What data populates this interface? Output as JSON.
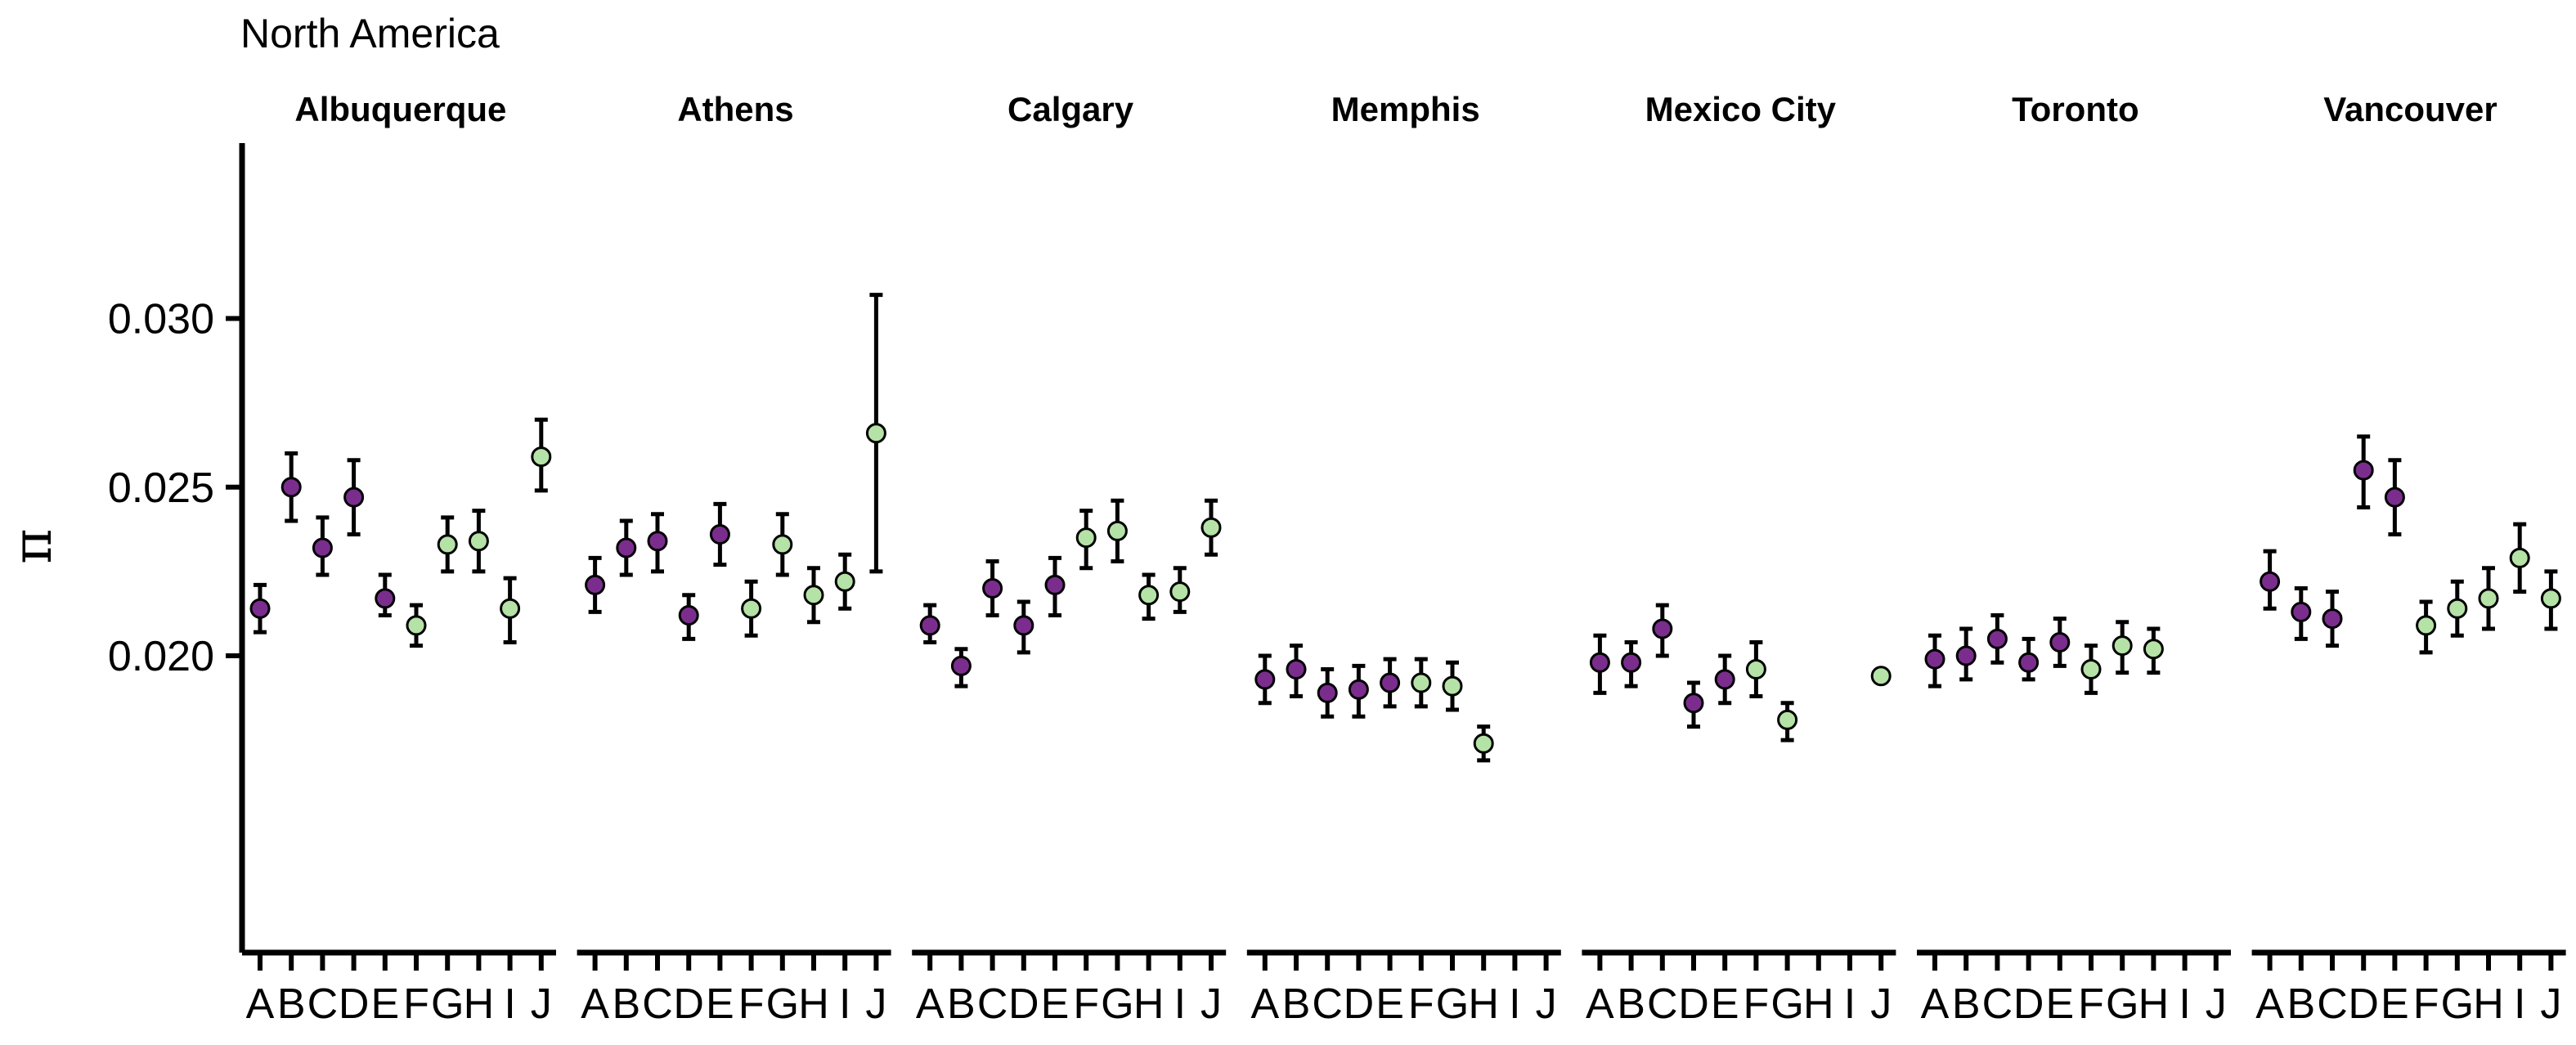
{
  "colors": {
    "purple": "#7b2d8e",
    "light_green": "#b5e2a7",
    "stroke": "#000000"
  },
  "chart_data": {
    "type": "scatter",
    "subtitle": "North America",
    "ylabel": "π",
    "ylim": [
      0.0112,
      0.0352
    ],
    "yticks": [
      0.02,
      0.025,
      0.03
    ],
    "ytick_labels": [
      "0.020",
      "0.025",
      "0.030"
    ],
    "categories": [
      "A",
      "B",
      "C",
      "D",
      "E",
      "F",
      "G",
      "H",
      "I",
      "J"
    ],
    "grid": false,
    "error_bars": true,
    "panels": [
      {
        "name": "Albuquerque",
        "points": [
          {
            "x": "A",
            "y": 0.0214,
            "lo": 0.0207,
            "hi": 0.0221,
            "color": "purple"
          },
          {
            "x": "B",
            "y": 0.025,
            "lo": 0.024,
            "hi": 0.026,
            "color": "purple"
          },
          {
            "x": "C",
            "y": 0.0232,
            "lo": 0.0224,
            "hi": 0.0241,
            "color": "purple"
          },
          {
            "x": "D",
            "y": 0.0247,
            "lo": 0.0236,
            "hi": 0.0258,
            "color": "purple"
          },
          {
            "x": "E",
            "y": 0.0217,
            "lo": 0.0212,
            "hi": 0.0224,
            "color": "purple"
          },
          {
            "x": "F",
            "y": 0.0209,
            "lo": 0.0203,
            "hi": 0.0215,
            "color": "light_green"
          },
          {
            "x": "G",
            "y": 0.0233,
            "lo": 0.0225,
            "hi": 0.0241,
            "color": "light_green"
          },
          {
            "x": "H",
            "y": 0.0234,
            "lo": 0.0225,
            "hi": 0.0243,
            "color": "light_green"
          },
          {
            "x": "I",
            "y": 0.0214,
            "lo": 0.0204,
            "hi": 0.0223,
            "color": "light_green"
          },
          {
            "x": "J",
            "y": 0.0259,
            "lo": 0.0249,
            "hi": 0.027,
            "color": "light_green"
          }
        ]
      },
      {
        "name": "Athens",
        "points": [
          {
            "x": "A",
            "y": 0.0221,
            "lo": 0.0213,
            "hi": 0.0229,
            "color": "purple"
          },
          {
            "x": "B",
            "y": 0.0232,
            "lo": 0.0224,
            "hi": 0.024,
            "color": "purple"
          },
          {
            "x": "C",
            "y": 0.0234,
            "lo": 0.0225,
            "hi": 0.0242,
            "color": "purple"
          },
          {
            "x": "D",
            "y": 0.0212,
            "lo": 0.0205,
            "hi": 0.0218,
            "color": "purple"
          },
          {
            "x": "E",
            "y": 0.0236,
            "lo": 0.0227,
            "hi": 0.0245,
            "color": "purple"
          },
          {
            "x": "F",
            "y": 0.0214,
            "lo": 0.0206,
            "hi": 0.0222,
            "color": "light_green"
          },
          {
            "x": "G",
            "y": 0.0233,
            "lo": 0.0224,
            "hi": 0.0242,
            "color": "light_green"
          },
          {
            "x": "H",
            "y": 0.0218,
            "lo": 0.021,
            "hi": 0.0226,
            "color": "light_green"
          },
          {
            "x": "I",
            "y": 0.0222,
            "lo": 0.0214,
            "hi": 0.023,
            "color": "light_green"
          },
          {
            "x": "J",
            "y": 0.0266,
            "lo": 0.0225,
            "hi": 0.0307,
            "color": "light_green"
          }
        ]
      },
      {
        "name": "Calgary",
        "points": [
          {
            "x": "A",
            "y": 0.0209,
            "lo": 0.0204,
            "hi": 0.0215,
            "color": "purple"
          },
          {
            "x": "B",
            "y": 0.0197,
            "lo": 0.0191,
            "hi": 0.0202,
            "color": "purple"
          },
          {
            "x": "C",
            "y": 0.022,
            "lo": 0.0212,
            "hi": 0.0228,
            "color": "purple"
          },
          {
            "x": "D",
            "y": 0.0209,
            "lo": 0.0201,
            "hi": 0.0216,
            "color": "purple"
          },
          {
            "x": "E",
            "y": 0.0221,
            "lo": 0.0212,
            "hi": 0.0229,
            "color": "purple"
          },
          {
            "x": "F",
            "y": 0.0235,
            "lo": 0.0226,
            "hi": 0.0243,
            "color": "light_green"
          },
          {
            "x": "G",
            "y": 0.0237,
            "lo": 0.0228,
            "hi": 0.0246,
            "color": "light_green"
          },
          {
            "x": "H",
            "y": 0.0218,
            "lo": 0.0211,
            "hi": 0.0224,
            "color": "light_green"
          },
          {
            "x": "I",
            "y": 0.0219,
            "lo": 0.0213,
            "hi": 0.0226,
            "color": "light_green"
          },
          {
            "x": "J",
            "y": 0.0238,
            "lo": 0.023,
            "hi": 0.0246,
            "color": "light_green"
          }
        ]
      },
      {
        "name": "Memphis",
        "points": [
          {
            "x": "A",
            "y": 0.0193,
            "lo": 0.0186,
            "hi": 0.02,
            "color": "purple"
          },
          {
            "x": "B",
            "y": 0.0196,
            "lo": 0.0188,
            "hi": 0.0203,
            "color": "purple"
          },
          {
            "x": "C",
            "y": 0.0189,
            "lo": 0.0182,
            "hi": 0.0196,
            "color": "purple"
          },
          {
            "x": "D",
            "y": 0.019,
            "lo": 0.0182,
            "hi": 0.0197,
            "color": "purple"
          },
          {
            "x": "E",
            "y": 0.0192,
            "lo": 0.0185,
            "hi": 0.0199,
            "color": "purple"
          },
          {
            "x": "F",
            "y": 0.0192,
            "lo": 0.0185,
            "hi": 0.0199,
            "color": "light_green"
          },
          {
            "x": "G",
            "y": 0.0191,
            "lo": 0.0184,
            "hi": 0.0198,
            "color": "light_green"
          },
          {
            "x": "H",
            "y": 0.0174,
            "lo": 0.0169,
            "hi": 0.0179,
            "color": "light_green"
          }
        ]
      },
      {
        "name": "Mexico City",
        "points": [
          {
            "x": "A",
            "y": 0.0198,
            "lo": 0.0189,
            "hi": 0.0206,
            "color": "purple"
          },
          {
            "x": "B",
            "y": 0.0198,
            "lo": 0.0191,
            "hi": 0.0204,
            "color": "purple"
          },
          {
            "x": "C",
            "y": 0.0208,
            "lo": 0.02,
            "hi": 0.0215,
            "color": "purple"
          },
          {
            "x": "D",
            "y": 0.0186,
            "lo": 0.0179,
            "hi": 0.0192,
            "color": "purple"
          },
          {
            "x": "E",
            "y": 0.0193,
            "lo": 0.0186,
            "hi": 0.02,
            "color": "purple"
          },
          {
            "x": "F",
            "y": 0.0196,
            "lo": 0.0188,
            "hi": 0.0204,
            "color": "light_green"
          },
          {
            "x": "G",
            "y": 0.0181,
            "lo": 0.0175,
            "hi": 0.0186,
            "color": "light_green"
          },
          {
            "x": "J",
            "y": 0.0194,
            "lo": null,
            "hi": null,
            "color": "light_green"
          }
        ]
      },
      {
        "name": "Toronto",
        "points": [
          {
            "x": "A",
            "y": 0.0199,
            "lo": 0.0191,
            "hi": 0.0206,
            "color": "purple"
          },
          {
            "x": "B",
            "y": 0.02,
            "lo": 0.0193,
            "hi": 0.0208,
            "color": "purple"
          },
          {
            "x": "C",
            "y": 0.0205,
            "lo": 0.0198,
            "hi": 0.0212,
            "color": "purple"
          },
          {
            "x": "D",
            "y": 0.0198,
            "lo": 0.0193,
            "hi": 0.0205,
            "color": "purple"
          },
          {
            "x": "E",
            "y": 0.0204,
            "lo": 0.0197,
            "hi": 0.0211,
            "color": "purple"
          },
          {
            "x": "F",
            "y": 0.0196,
            "lo": 0.0189,
            "hi": 0.0203,
            "color": "light_green"
          },
          {
            "x": "G",
            "y": 0.0203,
            "lo": 0.0195,
            "hi": 0.021,
            "color": "light_green"
          },
          {
            "x": "H",
            "y": 0.0202,
            "lo": 0.0195,
            "hi": 0.0208,
            "color": "light_green"
          }
        ]
      },
      {
        "name": "Vancouver",
        "points": [
          {
            "x": "A",
            "y": 0.0222,
            "lo": 0.0214,
            "hi": 0.0231,
            "color": "purple"
          },
          {
            "x": "B",
            "y": 0.0213,
            "lo": 0.0205,
            "hi": 0.022,
            "color": "purple"
          },
          {
            "x": "C",
            "y": 0.0211,
            "lo": 0.0203,
            "hi": 0.0219,
            "color": "purple"
          },
          {
            "x": "D",
            "y": 0.0255,
            "lo": 0.0244,
            "hi": 0.0265,
            "color": "purple"
          },
          {
            "x": "E",
            "y": 0.0247,
            "lo": 0.0236,
            "hi": 0.0258,
            "color": "purple"
          },
          {
            "x": "F",
            "y": 0.0209,
            "lo": 0.0201,
            "hi": 0.0216,
            "color": "light_green"
          },
          {
            "x": "G",
            "y": 0.0214,
            "lo": 0.0206,
            "hi": 0.0222,
            "color": "light_green"
          },
          {
            "x": "H",
            "y": 0.0217,
            "lo": 0.0208,
            "hi": 0.0226,
            "color": "light_green"
          },
          {
            "x": "I",
            "y": 0.0229,
            "lo": 0.0219,
            "hi": 0.0239,
            "color": "light_green"
          },
          {
            "x": "J",
            "y": 0.0217,
            "lo": 0.0208,
            "hi": 0.0225,
            "color": "light_green"
          }
        ]
      }
    ]
  }
}
